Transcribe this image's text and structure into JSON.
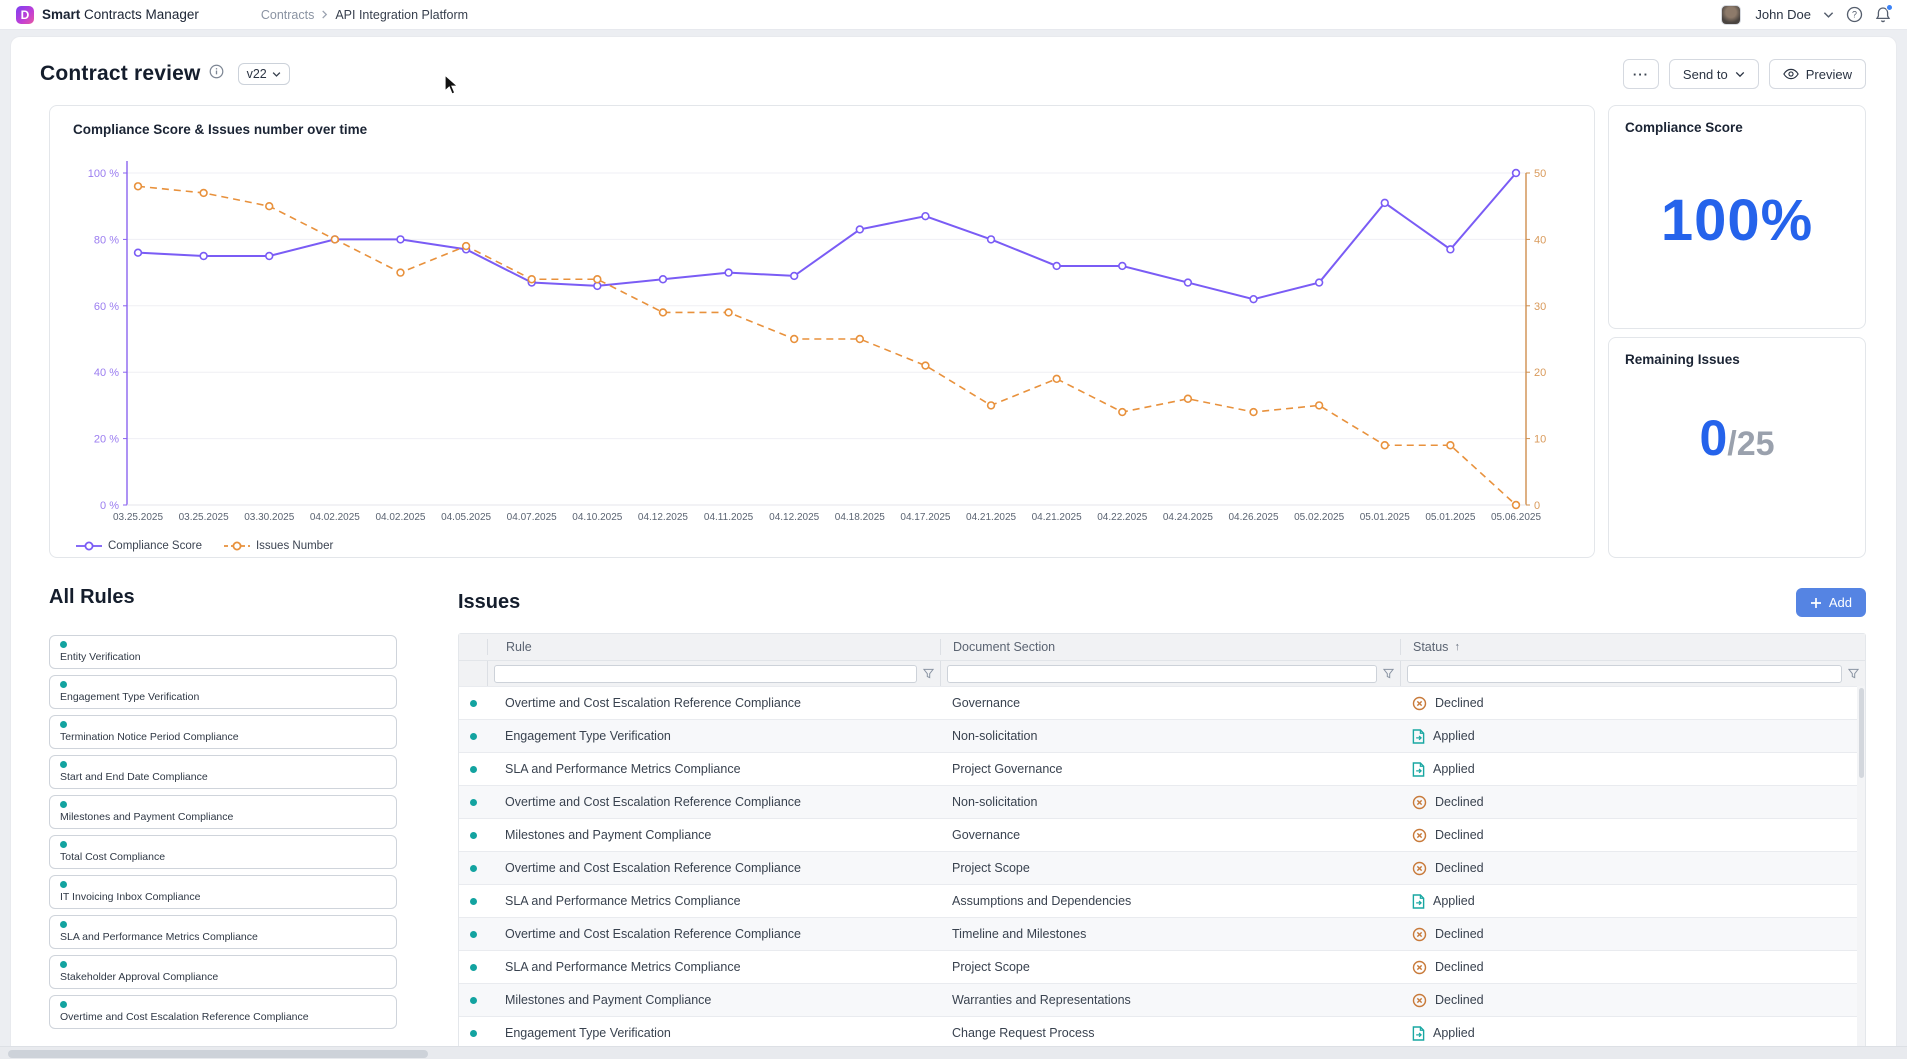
{
  "topbar": {
    "app_name_bold": "Smart",
    "app_name_rest": "Contracts Manager",
    "logo_letter": "D",
    "breadcrumb": [
      "Contracts",
      "API Integration Platform"
    ],
    "user_name": "John Doe"
  },
  "page": {
    "title": "Contract review",
    "version": "v22",
    "actions": {
      "more": "···",
      "send_to": "Send to",
      "preview": "Preview"
    }
  },
  "chart_data": {
    "type": "line",
    "title": "Compliance Score & Issues number over time",
    "x": [
      "03.25.2025",
      "03.25.2025",
      "03.30.2025",
      "04.02.2025",
      "04.02.2025",
      "04.05.2025",
      "04.07.2025",
      "04.10.2025",
      "04.12.2025",
      "04.11.2025",
      "04.12.2025",
      "04.18.2025",
      "04.17.2025",
      "04.21.2025",
      "04.21.2025",
      "04.22.2025",
      "04.24.2025",
      "04.26.2025",
      "05.02.2025",
      "05.01.2025",
      "05.01.2025",
      "05.06.2025"
    ],
    "series": [
      {
        "name": "Compliance Score",
        "axis": "left",
        "style": "solid",
        "color": "#7a5cf5",
        "values": [
          76,
          75,
          75,
          80,
          80,
          77,
          67,
          66,
          68,
          70,
          69,
          83,
          87,
          80,
          72,
          72,
          67,
          62,
          67,
          91,
          77,
          100
        ]
      },
      {
        "name": "Issues Number",
        "axis": "right",
        "style": "dashed",
        "color": "#e8913c",
        "values": [
          48,
          47,
          45,
          40,
          35,
          39,
          34,
          34,
          29,
          29,
          25,
          25,
          21,
          15,
          19,
          14,
          16,
          14,
          15,
          9,
          9,
          0
        ]
      }
    ],
    "left_axis": {
      "min": 0,
      "max": 100,
      "ticks": [
        "100 %",
        "80 %",
        "60 %",
        "40 %",
        "20 %",
        "0 %"
      ],
      "color": "#8a63f0"
    },
    "right_axis": {
      "min": 0,
      "max": 50,
      "ticks": [
        "50",
        "40",
        "30",
        "20",
        "10",
        "0"
      ],
      "color": "#cf8f4e"
    },
    "grid": true,
    "legend_position": "bottom-left"
  },
  "cards": {
    "compliance": {
      "title": "Compliance Score",
      "value": "100%"
    },
    "remaining": {
      "title": "Remaining Issues",
      "value": "0",
      "total": "/25"
    }
  },
  "rules": {
    "title": "All Rules",
    "items": [
      "Entity Verification",
      "Engagement Type Verification",
      "Termination Notice Period Compliance",
      "Start and End Date Compliance",
      "Milestones and Payment Compliance",
      "Total Cost Compliance",
      "IT Invoicing Inbox Compliance",
      "SLA and Performance Metrics Compliance",
      "Stakeholder Approval Compliance",
      "Overtime and Cost Escalation Reference Compliance"
    ]
  },
  "issues": {
    "title": "Issues",
    "add_label": "Add",
    "columns": [
      "Rule",
      "Document Section",
      "Status"
    ],
    "sort_indicator": "↑",
    "rows": [
      {
        "rule": "Overtime and Cost Escalation Reference Compliance",
        "section": "Governance",
        "status": "Declined"
      },
      {
        "rule": "Engagement Type Verification",
        "section": "Non-solicitation",
        "status": "Applied"
      },
      {
        "rule": "SLA and Performance Metrics Compliance",
        "section": "Project Governance",
        "status": "Applied"
      },
      {
        "rule": "Overtime and Cost Escalation Reference Compliance",
        "section": "Non-solicitation",
        "status": "Declined"
      },
      {
        "rule": "Milestones and Payment Compliance",
        "section": "Governance",
        "status": "Declined"
      },
      {
        "rule": "Overtime and Cost Escalation Reference Compliance",
        "section": "Project Scope",
        "status": "Declined"
      },
      {
        "rule": "SLA and Performance Metrics Compliance",
        "section": "Assumptions and Dependencies",
        "status": "Applied"
      },
      {
        "rule": "Overtime and Cost Escalation Reference Compliance",
        "section": "Timeline and Milestones",
        "status": "Declined"
      },
      {
        "rule": "SLA and Performance Metrics Compliance",
        "section": "Project Scope",
        "status": "Declined"
      },
      {
        "rule": "Milestones and Payment Compliance",
        "section": "Warranties and Representations",
        "status": "Declined"
      },
      {
        "rule": "Engagement Type Verification",
        "section": "Change Request Process",
        "status": "Applied"
      }
    ]
  },
  "colors": {
    "accent_blue": "#2563eb",
    "button_blue": "#5584e3",
    "purple_line": "#7a5cf5",
    "orange_line": "#e8913c",
    "teal_dot": "#13a3a0",
    "declined_icon": "#c87a3a",
    "applied_icon": "#18a7a2"
  }
}
